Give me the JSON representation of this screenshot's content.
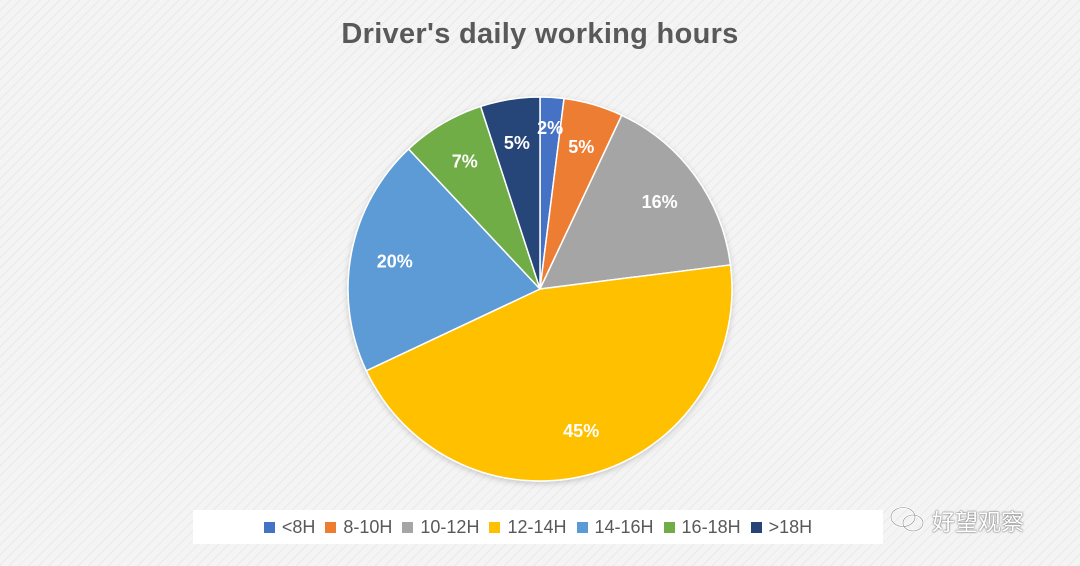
{
  "chart_data": {
    "type": "pie",
    "title": "Driver's daily working hours",
    "categories": [
      "<8H",
      "8-10H",
      "10-12H",
      "12-14H",
      "14-16H",
      "16-18H",
      ">18H"
    ],
    "values": [
      2,
      5,
      16,
      45,
      20,
      7,
      5
    ],
    "labels": [
      "2%",
      "5%",
      "16%",
      "45%",
      "20%",
      "7%",
      "5%"
    ],
    "colors": [
      "#4472c4",
      "#ed7d31",
      "#a5a5a5",
      "#ffc000",
      "#5b9bd5",
      "#70ad47",
      "#264478"
    ],
    "legend_position": "bottom",
    "start_angle": "12 o'clock",
    "direction": "clockwise"
  },
  "watermark": {
    "text": "好望观察",
    "icon": "wechat-icon"
  }
}
